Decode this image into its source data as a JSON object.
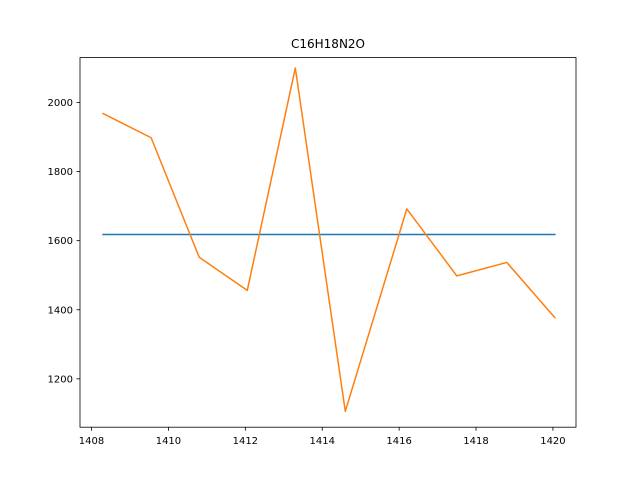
{
  "chart_data": {
    "type": "line",
    "title": "C16H18N2O",
    "xlabel": "",
    "ylabel": "",
    "xlim": [
      1407.7,
      1420.6
    ],
    "ylim": [
      1060,
      2130
    ],
    "grid": false,
    "x_ticks": [
      1408,
      1410,
      1412,
      1414,
      1416,
      1418,
      1420
    ],
    "y_ticks": [
      1200,
      1400,
      1600,
      1800,
      2000
    ],
    "series": [
      {
        "color": "#1f77b4",
        "x": [
          1408.3,
          1420.05
        ],
        "y": [
          1618,
          1618
        ]
      },
      {
        "color": "#ff7f0e",
        "x": [
          1408.3,
          1409.55,
          1410.8,
          1412.05,
          1413.3,
          1414.6,
          1416.2,
          1417.5,
          1418.8,
          1420.05
        ],
        "y": [
          1968,
          1898,
          1552,
          1456,
          2100,
          1106,
          1692,
          1498,
          1537,
          1377
        ]
      }
    ]
  }
}
